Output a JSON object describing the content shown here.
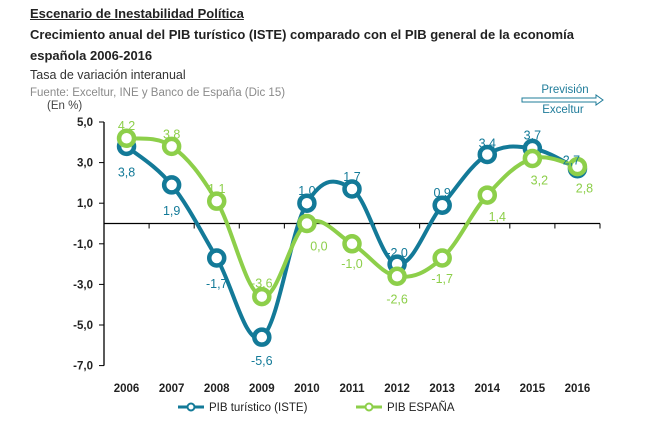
{
  "header": {
    "scenario": "Escenario de Inestabilidad  Política",
    "title_line1": "Crecimiento anual  del PIB turístico (ISTE) comparado  con  el PIB general de la economía",
    "title_line2": "española 2006-2016",
    "subtitle": "Tasa de variación interanual",
    "source": "Fuente:  Exceltur, INE y Banco de España (Dic 15)",
    "unit": "(En %)"
  },
  "forecast_note": {
    "line1": "Previsión",
    "line2": "Exceltur",
    "arrow_icon": "right-arrow"
  },
  "colors": {
    "iste": "#137a98",
    "espana": "#8dcf4a",
    "axis": "#000000"
  },
  "chart_data": {
    "type": "line",
    "title": "Crecimiento anual del PIB turístico (ISTE) comparado con el PIB general de la economía española 2006-2016",
    "subtitle": "Tasa de variación interanual",
    "xlabel": "",
    "ylabel": "(En %)",
    "ylim": [
      -7,
      5
    ],
    "yticks": [
      5,
      3,
      1,
      -1,
      -3,
      -5,
      -7
    ],
    "ytick_labels": [
      "5,0",
      "3,0",
      "1,0",
      "-1,0",
      "-3,0",
      "-5,0",
      "-7,0"
    ],
    "categories": [
      "2006",
      "2007",
      "2008",
      "2009",
      "2010",
      "2011",
      "2012",
      "2013",
      "2014",
      "2015",
      "2016"
    ],
    "grid": false,
    "legend_position": "bottom",
    "series": [
      {
        "name": "PIB turístico (ISTE)",
        "values": [
          3.8,
          1.9,
          -1.7,
          -5.6,
          1.0,
          1.7,
          -2.0,
          0.9,
          3.4,
          3.7,
          2.7
        ],
        "labels": [
          "3,8",
          "1,9",
          "-1,7",
          "-5,6",
          "1,0",
          "1,7",
          "-2,0",
          "0,9",
          "3,4",
          "3,7",
          "2,7"
        ]
      },
      {
        "name": "PIB ESPAÑA",
        "values": [
          4.2,
          3.8,
          1.1,
          -3.6,
          0.0,
          -1.0,
          -2.6,
          -1.7,
          1.4,
          3.2,
          2.8
        ],
        "labels": [
          "4,2",
          "3,8",
          "1,1",
          "-3,6",
          "0,0",
          "-1,0",
          "-2,6",
          "-1,7",
          "1,4",
          "3,2",
          "2,8"
        ]
      }
    ]
  }
}
